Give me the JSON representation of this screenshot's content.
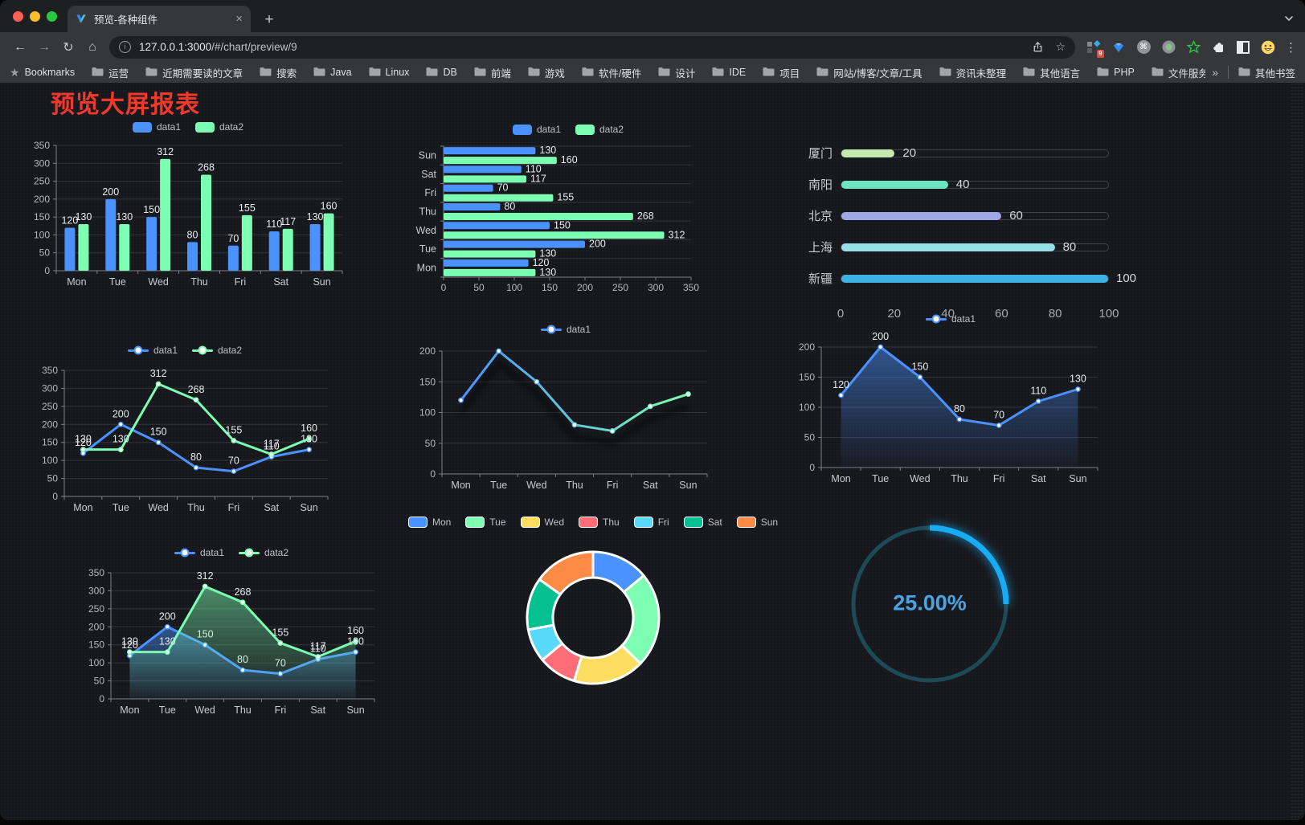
{
  "browser": {
    "tab_title": "预览-各种组件",
    "close_label": "×",
    "new_tab_label": "+",
    "url_host": "127.0.0.1:3000",
    "url_path": "/#/chart/preview/9",
    "extension_badge": "9",
    "bookmarks_label": "Bookmarks",
    "bookmark_folders": [
      "运营",
      "近期需要读的文章",
      "搜索",
      "Java",
      "Linux",
      "DB",
      "前端",
      "游戏",
      "软件/硬件",
      "设计",
      "IDE",
      "项目",
      "网站/博客/文章/工具",
      "资讯未整理",
      "其他语言",
      "PHP",
      "文件服务器"
    ],
    "bookmarks_overflow": "»",
    "other_bookmarks_label": "其他书签"
  },
  "page": {
    "title": "预览大屏报表",
    "title_color": "#f0392b",
    "background": "#17181d"
  },
  "palette": {
    "data1": "#4992ff",
    "data2": "#7cffb2",
    "grid": "#33343b",
    "axis": "#7e7f8a",
    "tick_text": "#b6b7c1",
    "category_text": "#c9cad2",
    "value_label_text": "#e9eaee"
  },
  "chart_data": [
    {
      "type": "bar",
      "categories": [
        "Mon",
        "Tue",
        "Wed",
        "Thu",
        "Fri",
        "Sat",
        "Sun"
      ],
      "series": [
        {
          "name": "data1",
          "color": "#4992ff",
          "values": [
            120,
            200,
            150,
            80,
            70,
            110,
            130
          ]
        },
        {
          "name": "data2",
          "color": "#7cffb2",
          "values": [
            130,
            130,
            312,
            268,
            155,
            117,
            160
          ]
        }
      ],
      "ylim": [
        0,
        350
      ],
      "y_tick_step": 50,
      "grid": true,
      "value_labels": true,
      "legend_position": "top"
    },
    {
      "type": "bar-horizontal",
      "categories": [
        "Mon",
        "Tue",
        "Wed",
        "Thu",
        "Fri",
        "Sat",
        "Sun"
      ],
      "categories_displayed_bottom_to_top": true,
      "series": [
        {
          "name": "data1",
          "color": "#4992ff",
          "values": [
            120,
            200,
            150,
            80,
            70,
            110,
            130
          ]
        },
        {
          "name": "data2",
          "color": "#7cffb2",
          "values": [
            130,
            130,
            312,
            268,
            155,
            117,
            160
          ]
        }
      ],
      "xlim": [
        0,
        350
      ],
      "x_tick_step": 50,
      "grid": true,
      "value_labels": true,
      "legend_position": "top"
    },
    {
      "type": "bar-horizontal",
      "variant": "progress",
      "categories": [
        "厦门",
        "南阳",
        "北京",
        "上海",
        "新疆"
      ],
      "values": [
        20,
        40,
        60,
        80,
        100
      ],
      "colors": [
        "#c4ebad",
        "#6be6c1",
        "#a0a7e6",
        "#96dee8",
        "#3fb1e3"
      ],
      "xlim": [
        0,
        100
      ],
      "x_ticks": [
        0,
        20,
        40,
        60,
        80,
        100
      ],
      "value_labels": true
    },
    {
      "type": "line",
      "categories": [
        "Mon",
        "Tue",
        "Wed",
        "Thu",
        "Fri",
        "Sat",
        "Sun"
      ],
      "series": [
        {
          "name": "data1",
          "color": "#4992ff",
          "values": [
            120,
            200,
            150,
            80,
            70,
            110,
            130
          ]
        },
        {
          "name": "data2",
          "color": "#7cffb2",
          "values": [
            130,
            130,
            312,
            268,
            155,
            117,
            160
          ]
        }
      ],
      "ylim": [
        0,
        350
      ],
      "y_tick_step": 50,
      "grid": true,
      "value_labels": true,
      "legend_position": "top"
    },
    {
      "type": "line",
      "categories": [
        "Mon",
        "Tue",
        "Wed",
        "Thu",
        "Fri",
        "Sat",
        "Sun"
      ],
      "series": [
        {
          "name": "data1",
          "gradient": [
            "#4992ff",
            "#7cffb2"
          ],
          "values": [
            120,
            200,
            150,
            80,
            70,
            110,
            130
          ]
        }
      ],
      "ylim": [
        0,
        200
      ],
      "y_tick_step": 50,
      "grid": true,
      "value_labels": false,
      "legend_position": "top",
      "line_shadow": true
    },
    {
      "type": "area",
      "categories": [
        "Mon",
        "Tue",
        "Wed",
        "Thu",
        "Fri",
        "Sat",
        "Sun"
      ],
      "series": [
        {
          "name": "data1",
          "color": "#4992ff",
          "values": [
            120,
            200,
            150,
            80,
            70,
            110,
            130
          ]
        }
      ],
      "ylim": [
        0,
        200
      ],
      "y_tick_step": 50,
      "grid": true,
      "value_labels": true,
      "legend_position": "top"
    },
    {
      "type": "area",
      "categories": [
        "Mon",
        "Tue",
        "Wed",
        "Thu",
        "Fri",
        "Sat",
        "Sun"
      ],
      "series": [
        {
          "name": "data1",
          "color": "#4992ff",
          "values": [
            120,
            200,
            150,
            80,
            70,
            110,
            130
          ]
        },
        {
          "name": "data2",
          "color": "#7cffb2",
          "values": [
            130,
            130,
            312,
            268,
            155,
            117,
            160
          ]
        }
      ],
      "ylim": [
        0,
        350
      ],
      "y_tick_step": 50,
      "grid": true,
      "value_labels": true,
      "legend_position": "top"
    },
    {
      "type": "pie",
      "variant": "donut",
      "categories": [
        "Mon",
        "Tue",
        "Wed",
        "Thu",
        "Fri",
        "Sat",
        "Sun"
      ],
      "values": [
        120,
        200,
        150,
        80,
        70,
        110,
        130
      ],
      "colors": [
        "#4992ff",
        "#7cffb2",
        "#fddd60",
        "#ff6e76",
        "#58d9f9",
        "#05c091",
        "#ff8a45"
      ],
      "legend_position": "top"
    },
    {
      "type": "gauge",
      "value": 25,
      "max": 100,
      "center_label": "25.00%",
      "bar_color": "#18acf4",
      "track_color": "#1d4a57",
      "text_color": "#4aa4e4"
    }
  ]
}
